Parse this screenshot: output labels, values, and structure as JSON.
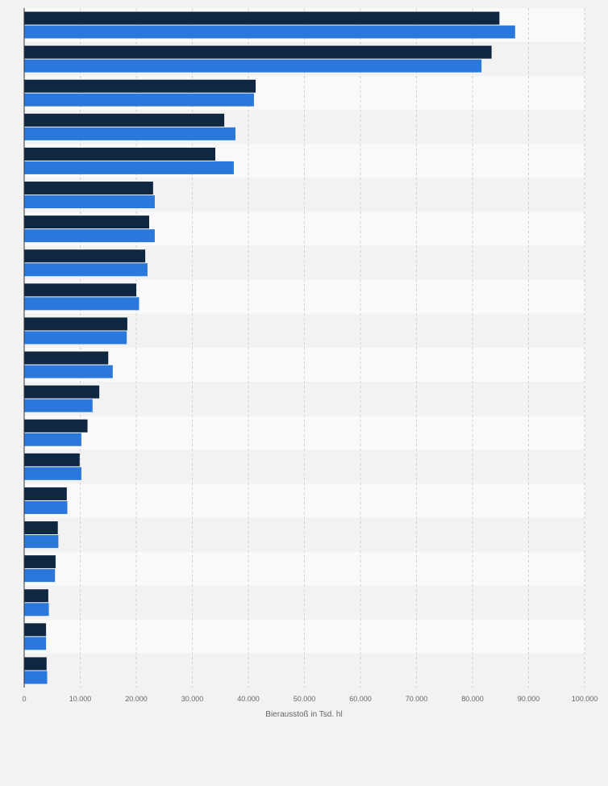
{
  "chart_data": {
    "type": "bar",
    "orientation": "horizontal",
    "categories": [
      "",
      "",
      "",
      "",
      "",
      "",
      "",
      "",
      "",
      "",
      "",
      "",
      "",
      "",
      "",
      "",
      "",
      "",
      "",
      ""
    ],
    "series": [
      {
        "values": [
          84800,
          83400,
          41300,
          35700,
          34100,
          23000,
          22300,
          21600,
          20000,
          18400,
          15000,
          13400,
          11300,
          9900,
          7600,
          6000,
          5600,
          4300,
          3900,
          4000
        ],
        "color": "#0f2741"
      },
      {
        "values": [
          87600,
          81600,
          41000,
          37700,
          37400,
          23300,
          23300,
          22000,
          20500,
          18300,
          15800,
          12200,
          10200,
          10200,
          7700,
          6100,
          5500,
          4400,
          3900,
          4100
        ],
        "color": "#2a78db"
      }
    ],
    "xlabel": "Bierausstoß in Tsd. hl",
    "ylabel": "",
    "xlim": [
      0,
      100000
    ],
    "xticks": [
      0,
      10000,
      20000,
      30000,
      40000,
      50000,
      60000,
      70000,
      80000,
      90000,
      100000
    ],
    "xtick_labels": [
      "0",
      "10.000",
      "20.000",
      "30.000",
      "40.000",
      "50.000",
      "60.000",
      "70.000",
      "80.000",
      "90.000",
      "100.000"
    ],
    "grid": true,
    "legend": "none"
  }
}
